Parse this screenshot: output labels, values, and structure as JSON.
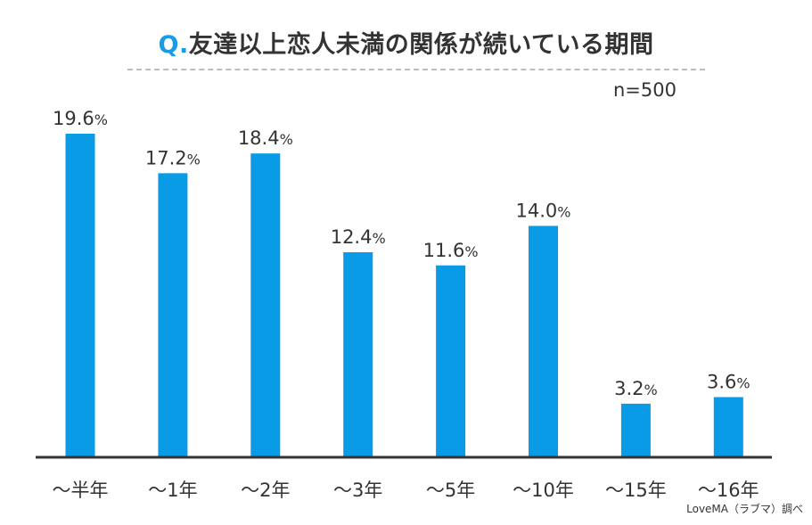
{
  "title": {
    "prefix": "Q.",
    "text": "友達以上恋人未満の関係が続いている期間"
  },
  "sample_size": "n=500",
  "credit": "LoveMA（ラブマ）調べ",
  "colors": {
    "bar": "#0a9be6",
    "accent": "#1a9be6",
    "text": "#333333",
    "axis": "#333333"
  },
  "chart_data": {
    "type": "bar",
    "title": "Q.友達以上恋人未満の関係が続いている期間",
    "categories": [
      "～半年",
      "～1年",
      "～2年",
      "～3年",
      "～5年",
      "～10年",
      "～15年",
      "～16年"
    ],
    "values": [
      19.6,
      17.2,
      18.4,
      12.4,
      11.6,
      14.0,
      3.2,
      3.6
    ],
    "value_labels": [
      "19.6",
      "17.2",
      "18.4",
      "12.4",
      "11.6",
      "14.0",
      "3.2",
      "3.6"
    ],
    "unit": "%",
    "xlabel": "",
    "ylabel": "",
    "ylim": [
      0,
      20
    ],
    "grid": false,
    "legend": "none"
  }
}
